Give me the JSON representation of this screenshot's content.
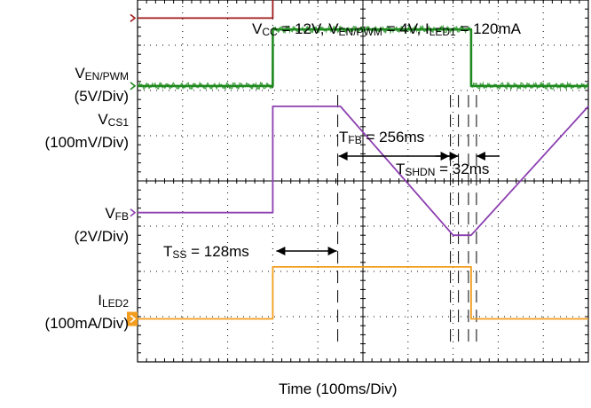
{
  "chart_data": {
    "type": "line",
    "title": "V_CC = 12V, V_EN/PWM = 4V, I_LED1 = 120mA",
    "header": {
      "vcc_main": "V",
      "vcc_sub": "CC",
      "vcc_val": " = 12V, ",
      "ven_main": "V",
      "ven_sub": "EN/PWM",
      "ven_val": " = 4V, ",
      "iled_main": "I",
      "iled_sub": "LED1",
      "iled_val": " = 120mA"
    },
    "xlabel": "Time  (100ms/Div)",
    "x_unit": "ms",
    "xlim": [
      -300,
      700
    ],
    "divisions": {
      "x": 10,
      "y": 8
    },
    "grid": true,
    "channels": [
      {
        "name_main": "V",
        "name_sub": "EN/PWM",
        "scale": "(5V/Div)",
        "color": "#a01818",
        "points": [
          [
            -300,
            3.6
          ],
          [
            0,
            3.6
          ],
          [
            0,
            4.8
          ],
          [
            700,
            4.8
          ]
        ]
      },
      {
        "name_main": "V",
        "name_sub": "CS1",
        "scale": "(100mV/Div)",
        "color": "#1f8a1f",
        "points": [
          [
            -300,
            2.1
          ],
          [
            0,
            2.1
          ],
          [
            0,
            3.35
          ],
          [
            440,
            3.35
          ],
          [
            440,
            2.1
          ],
          [
            700,
            2.1
          ]
        ]
      },
      {
        "name_main": "V",
        "name_sub": "FB",
        "scale": "(2V/Div)",
        "color": "#8c3fb0",
        "points": [
          [
            -300,
            -0.7
          ],
          [
            0,
            -0.7
          ],
          [
            0,
            1.65
          ],
          [
            150,
            1.65
          ],
          [
            400,
            -1.2
          ],
          [
            440,
            -1.2
          ],
          [
            700,
            1.65
          ]
        ]
      },
      {
        "name_main": "I",
        "name_sub": "LED2",
        "scale": "(100mA/Div)",
        "color": "#f29d1e",
        "points": [
          [
            -300,
            -3.05
          ],
          [
            0,
            -3.05
          ],
          [
            0,
            -1.9
          ],
          [
            440,
            -1.9
          ],
          [
            440,
            -3.05
          ],
          [
            700,
            -3.05
          ]
        ]
      }
    ],
    "annotations": [
      {
        "main": "T",
        "sub": "FB",
        "val": " = 256ms",
        "from": 150,
        "to": 400
      },
      {
        "main": "T",
        "sub": "SHDN",
        "val": " = 32ms",
        "from": 400,
        "to": 440
      },
      {
        "main": "T",
        "sub": "SS",
        "val": " = 128ms",
        "from": 0,
        "to": 150
      }
    ]
  }
}
